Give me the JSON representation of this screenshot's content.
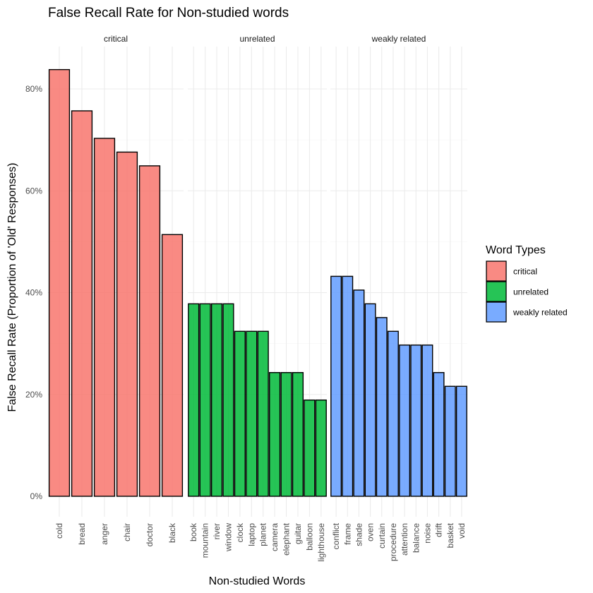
{
  "chart_data": {
    "type": "bar",
    "title": "False Recall Rate for Non-studied words",
    "xlabel": "Non-studied Words",
    "ylabel": "False Recall Rate (Proportion of 'Old' Responses)",
    "ylim": [
      0,
      0.86
    ],
    "y_ticks": [
      0,
      0.2,
      0.4,
      0.6,
      0.8
    ],
    "y_tick_labels": [
      "0%",
      "20%",
      "40%",
      "60%",
      "80%"
    ],
    "grid": true,
    "legend": {
      "title": "Word Types",
      "position": "right",
      "entries": [
        "critical",
        "unrelated",
        "weakly related"
      ]
    },
    "colors": {
      "critical": "#F8766D",
      "unrelated": "#00BA38",
      "weakly related": "#619CFF"
    },
    "facets": [
      {
        "name": "critical",
        "categories": [
          "cold",
          "bread",
          "anger",
          "chair",
          "doctor",
          "black"
        ],
        "values": [
          0.838,
          0.757,
          0.703,
          0.676,
          0.649,
          0.514
        ]
      },
      {
        "name": "unrelated",
        "categories": [
          "book",
          "mountain",
          "river",
          "window",
          "clock",
          "laptop",
          "planet",
          "camera",
          "elephant",
          "guitar",
          "balloon",
          "lighthouse"
        ],
        "values": [
          0.378,
          0.378,
          0.378,
          0.378,
          0.324,
          0.324,
          0.324,
          0.243,
          0.243,
          0.243,
          0.189,
          0.189
        ]
      },
      {
        "name": "weakly related",
        "categories": [
          "conflict",
          "frame",
          "shade",
          "oven",
          "curtain",
          "procedure",
          "attention",
          "balance",
          "noise",
          "drift",
          "basket",
          "void"
        ],
        "values": [
          0.432,
          0.432,
          0.405,
          0.378,
          0.351,
          0.324,
          0.297,
          0.297,
          0.297,
          0.243,
          0.216,
          0.216
        ]
      }
    ]
  }
}
